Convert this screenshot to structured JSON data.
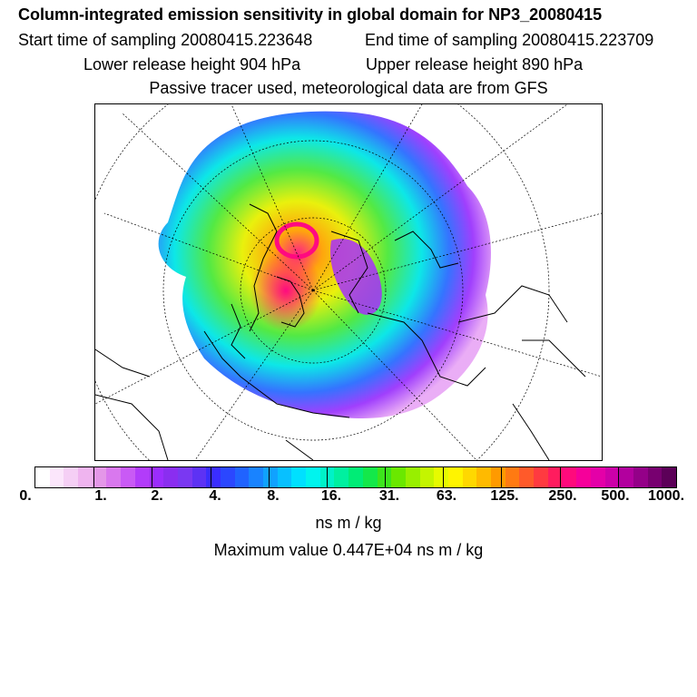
{
  "header": {
    "title": "Column-integrated emission sensitivity in global domain for NP3_20080415",
    "start": "Start time of sampling 20080415.223648",
    "end": "End time of sampling 20080415.223709",
    "lower": "Lower release height  904 hPa",
    "upper": "Upper release height  890 hPa",
    "tracer": "Passive tracer used, meteorological data are from GFS"
  },
  "colorbar": {
    "ticks": [
      "0.",
      "1.",
      "2.",
      "4.",
      "8.",
      "16.",
      "31.",
      "63.",
      "125.",
      "250.",
      "500.",
      "1000."
    ],
    "colors": [
      "#ffffff",
      "#fbe6fb",
      "#f5cff5",
      "#efb4ef",
      "#e497e8",
      "#d978ee",
      "#c95af5",
      "#b23cfa",
      "#9b2dfd",
      "#8a2ef0",
      "#7a38f2",
      "#5d32f4",
      "#3a2dff",
      "#2b47ff",
      "#2063ff",
      "#1983ff",
      "#10a2ff",
      "#08c0ff",
      "#00e0ff",
      "#00f4ee",
      "#00f2c8",
      "#00f0a0",
      "#00ec76",
      "#14e84a",
      "#3ce41c",
      "#6ae800",
      "#98ef00",
      "#c4f500",
      "#e6fb00",
      "#fff400",
      "#ffd800",
      "#ffba00",
      "#ff9a00",
      "#ff7a12",
      "#ff5a2a",
      "#ff3a40",
      "#ff1c5e",
      "#ff0a7c",
      "#f6009a",
      "#e400a8",
      "#cc00a8",
      "#b2009e",
      "#940088",
      "#780070",
      "#5c0058"
    ],
    "units": "ns m / kg"
  },
  "maximum": "Maximum value  0.447E+04 ns m / kg"
}
